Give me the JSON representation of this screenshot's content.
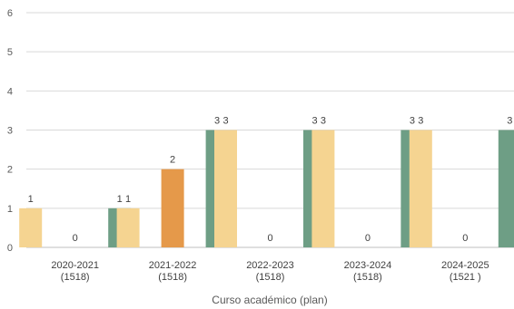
{
  "chart_data": {
    "type": "bar",
    "title": "",
    "xlabel": "Curso académico (plan)",
    "ylabel": "",
    "ylim": [
      0,
      6
    ],
    "yticks": [
      0,
      1,
      2,
      3,
      4,
      5,
      6
    ],
    "grid": true,
    "legend": "none",
    "categories": [
      [
        "2020-2021",
        "(1518)"
      ],
      [
        "2021-2022",
        "(1518)"
      ],
      [
        "2022-2023",
        "(1518)"
      ],
      [
        "2023-2024",
        "(1518)"
      ],
      [
        "2024-2025",
        "(1521 )"
      ]
    ],
    "series": [
      {
        "color": "#f5d491",
        "values": [
          1,
          1,
          3,
          3,
          3
        ]
      },
      {
        "color": "#e5994a",
        "values": [
          0,
          2,
          0,
          0,
          0
        ]
      },
      {
        "color": "#6e9e85",
        "values": [
          1,
          3,
          3,
          3,
          3
        ]
      }
    ]
  }
}
